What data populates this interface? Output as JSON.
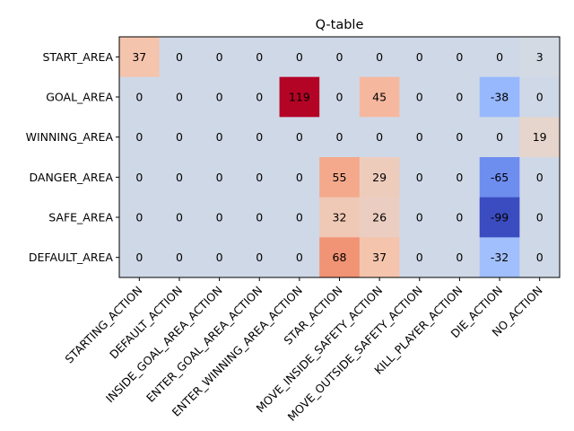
{
  "chart_data": {
    "type": "heatmap",
    "title": "Q-table",
    "xlabel": "",
    "ylabel": "",
    "colormap": "coolwarm",
    "value_range": [
      -99,
      119
    ],
    "rows": [
      "START_AREA",
      "GOAL_AREA",
      "WINNING_AREA",
      "DANGER_AREA",
      "SAFE_AREA",
      "DEFAULT_AREA"
    ],
    "columns": [
      "STARTING_ACTION",
      "DEFAULT_ACTION",
      "INSIDE_GOAL_AREA_ACTION",
      "ENTER_GOAL_AREA_ACTION",
      "ENTER_WINNING_AREA_ACTION",
      "STAR_ACTION",
      "MOVE_INSIDE_SAFETY_ACTION",
      "MOVE_OUTSIDE_SAFETY_ACTION",
      "KILL_PLAYER_ACTION",
      "DIE_ACTION",
      "NO_ACTION"
    ],
    "values": [
      [
        37,
        0,
        0,
        0,
        0,
        0,
        0,
        0,
        0,
        0,
        3
      ],
      [
        0,
        0,
        0,
        0,
        119,
        0,
        45,
        0,
        0,
        -38,
        0
      ],
      [
        0,
        0,
        0,
        0,
        0,
        0,
        0,
        0,
        0,
        0,
        19
      ],
      [
        0,
        0,
        0,
        0,
        0,
        55,
        29,
        0,
        0,
        -65,
        0
      ],
      [
        0,
        0,
        0,
        0,
        0,
        32,
        26,
        0,
        0,
        -99,
        0
      ],
      [
        0,
        0,
        0,
        0,
        0,
        68,
        37,
        0,
        0,
        -32,
        0
      ]
    ],
    "grid": false,
    "legend": "none"
  }
}
